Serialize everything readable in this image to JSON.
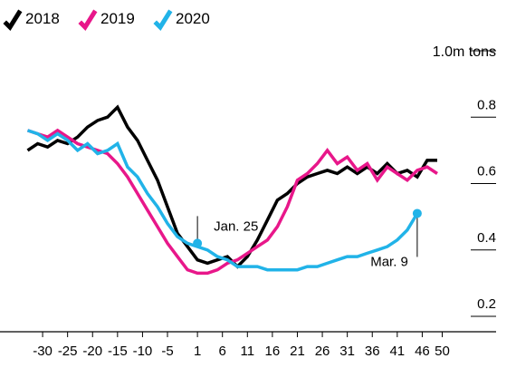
{
  "chart_data": {
    "type": "line",
    "title": "",
    "xlabel": "",
    "ylabel": "",
    "unit_label": "1.0m tons",
    "ylim": [
      0.2,
      1.0
    ],
    "xlim": [
      -34,
      51
    ],
    "x_ticks": [
      -30,
      -25,
      -20,
      -15,
      -10,
      -5,
      1,
      6,
      11,
      16,
      21,
      26,
      31,
      36,
      41,
      46,
      50
    ],
    "x_tick_labels": [
      "-30",
      "-25",
      "-20",
      "-15",
      "-10",
      "-5",
      "1",
      "6",
      "11",
      "16",
      "21",
      "26",
      "31",
      "36",
      "41",
      "46",
      "50"
    ],
    "y_ticks": [
      0.2,
      0.4,
      0.6,
      0.8
    ],
    "y_tick_labels": [
      "0.2",
      "0.4",
      "0.6",
      "0.8"
    ],
    "grid": false,
    "legend_position": "top-left",
    "series": [
      {
        "name": "2018",
        "color": "#000000",
        "x": [
          -33,
          -31,
          -29,
          -27,
          -25,
          -23,
          -21,
          -19,
          -17,
          -15,
          -13,
          -11,
          -9,
          -7,
          -5,
          -3,
          -1,
          1,
          3,
          5,
          7,
          9,
          11,
          13,
          15,
          17,
          19,
          21,
          23,
          25,
          27,
          29,
          31,
          33,
          35,
          37,
          39,
          41,
          43,
          45,
          47,
          49
        ],
        "y": [
          0.7,
          0.72,
          0.71,
          0.73,
          0.72,
          0.74,
          0.77,
          0.79,
          0.8,
          0.83,
          0.77,
          0.73,
          0.67,
          0.61,
          0.53,
          0.45,
          0.41,
          0.37,
          0.36,
          0.37,
          0.38,
          0.35,
          0.38,
          0.43,
          0.49,
          0.55,
          0.57,
          0.6,
          0.62,
          0.63,
          0.64,
          0.63,
          0.65,
          0.63,
          0.65,
          0.63,
          0.66,
          0.63,
          0.64,
          0.62,
          0.67,
          0.67
        ]
      },
      {
        "name": "2019",
        "color": "#e8178a",
        "x": [
          -33,
          -31,
          -29,
          -27,
          -25,
          -23,
          -21,
          -19,
          -17,
          -15,
          -13,
          -11,
          -9,
          -7,
          -5,
          -3,
          -1,
          1,
          3,
          5,
          7,
          9,
          11,
          13,
          15,
          17,
          19,
          21,
          23,
          25,
          27,
          29,
          31,
          33,
          35,
          37,
          39,
          41,
          43,
          45,
          47,
          49
        ],
        "y": [
          0.76,
          0.75,
          0.74,
          0.76,
          0.74,
          0.72,
          0.71,
          0.7,
          0.69,
          0.66,
          0.62,
          0.57,
          0.52,
          0.47,
          0.42,
          0.38,
          0.34,
          0.33,
          0.33,
          0.34,
          0.36,
          0.37,
          0.39,
          0.41,
          0.43,
          0.47,
          0.53,
          0.61,
          0.63,
          0.66,
          0.7,
          0.66,
          0.68,
          0.64,
          0.66,
          0.61,
          0.65,
          0.63,
          0.61,
          0.64,
          0.65,
          0.63
        ]
      },
      {
        "name": "2020",
        "color": "#21b3e8",
        "x": [
          -33,
          -31,
          -29,
          -27,
          -25,
          -23,
          -21,
          -19,
          -17,
          -15,
          -13,
          -11,
          -9,
          -7,
          -5,
          -3,
          -1,
          1,
          3,
          5,
          7,
          9,
          11,
          13,
          15,
          17,
          19,
          21,
          23,
          25,
          27,
          29,
          31,
          33,
          35,
          37,
          39,
          41,
          43,
          45
        ],
        "y": [
          0.76,
          0.75,
          0.73,
          0.75,
          0.73,
          0.7,
          0.72,
          0.69,
          0.7,
          0.72,
          0.65,
          0.62,
          0.57,
          0.53,
          0.48,
          0.44,
          0.42,
          0.41,
          0.4,
          0.38,
          0.37,
          0.35,
          0.35,
          0.35,
          0.34,
          0.34,
          0.34,
          0.34,
          0.35,
          0.35,
          0.36,
          0.37,
          0.38,
          0.38,
          0.39,
          0.4,
          0.41,
          0.43,
          0.46,
          0.51
        ]
      }
    ],
    "annotations": [
      {
        "text": "Jan. 25",
        "x": 1,
        "y": 0.42
      },
      {
        "text": "Mar. 9",
        "x": 45,
        "y": 0.51
      }
    ]
  }
}
